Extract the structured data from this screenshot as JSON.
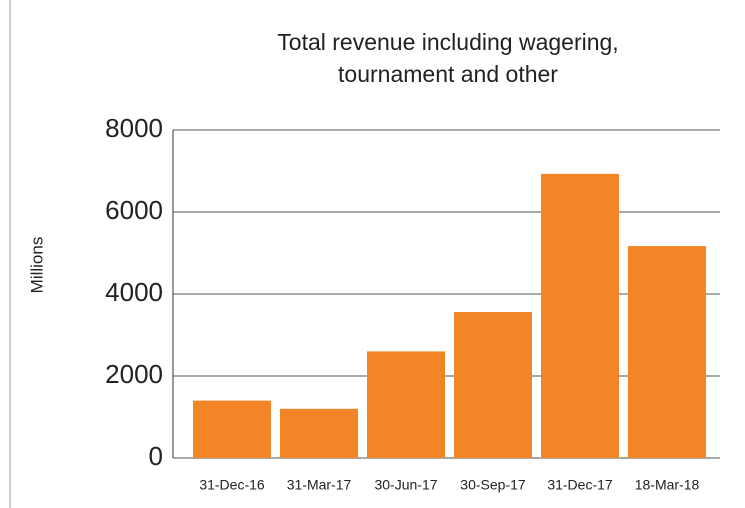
{
  "chart_data": {
    "type": "bar",
    "title": [
      "Total revenue including wagering,",
      "tournament and other"
    ],
    "y_label": "Millions",
    "categories": [
      "31-Dec-16",
      "31-Mar-17",
      "30-Jun-17",
      "30-Sep-17",
      "31-Dec-17",
      "18-Mar-18"
    ],
    "values": [
      1400,
      1200,
      2600,
      3560,
      6930,
      5170
    ],
    "color": "#f28627",
    "ylim": [
      0,
      8000
    ],
    "yticks": [
      0,
      2000,
      4000,
      6000,
      8000
    ],
    "grid": true
  }
}
